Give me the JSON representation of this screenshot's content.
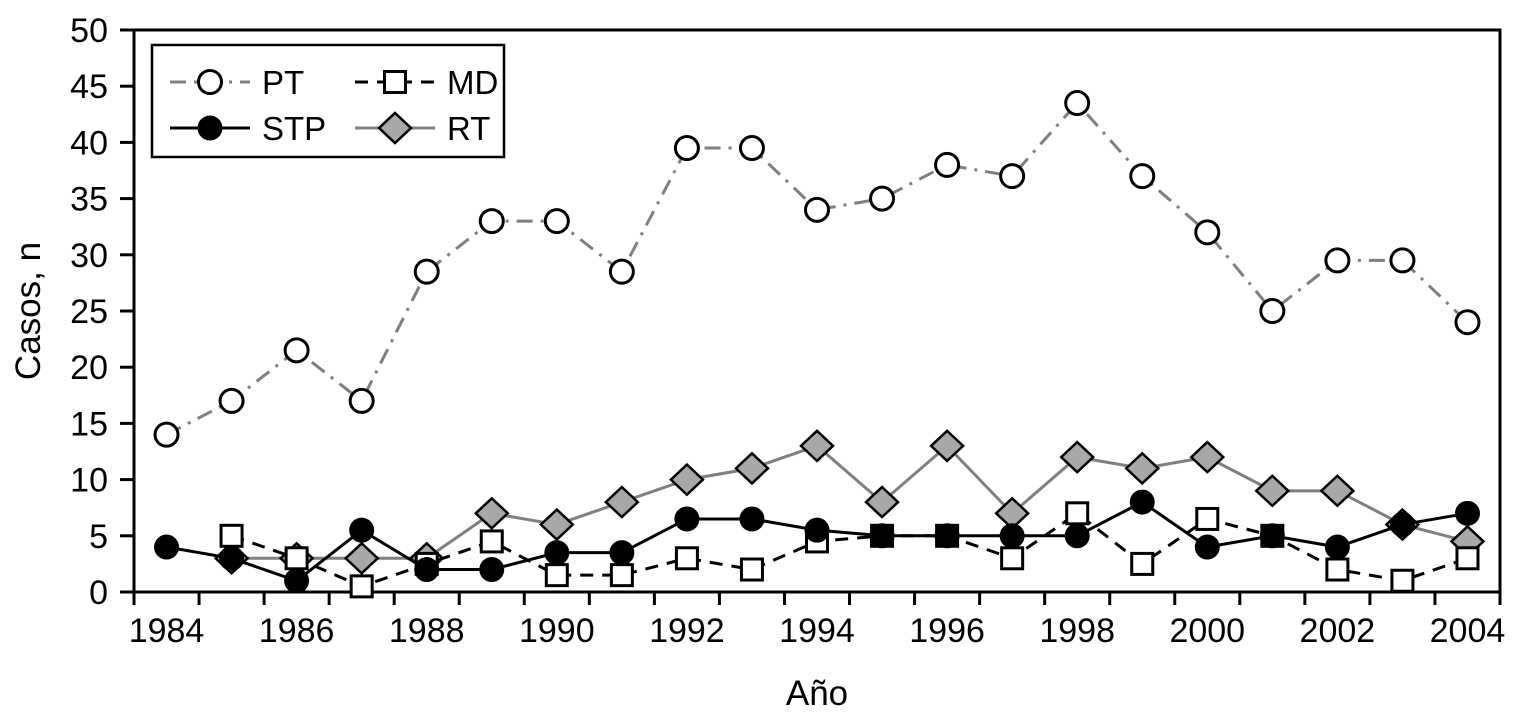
{
  "figure": {
    "background": "#ffffff"
  },
  "chart_data": {
    "type": "line",
    "title": "",
    "xlabel": "Año",
    "ylabel": "Casos, n",
    "x": [
      1984,
      1985,
      1986,
      1987,
      1988,
      1989,
      1990,
      1991,
      1992,
      1993,
      1994,
      1995,
      1996,
      1997,
      1998,
      1999,
      2000,
      2001,
      2002,
      2003,
      2004
    ],
    "x_tick_label_years": [
      1984,
      1986,
      1988,
      1990,
      1992,
      1994,
      1996,
      1998,
      2000,
      2002,
      2004
    ],
    "ylim": [
      0,
      50
    ],
    "ytick_step": 5,
    "grid": false,
    "legend_position": "top-left-inside",
    "axis_color": "#000000",
    "gray": "#7f7f7f",
    "legend_entries": [
      "PT",
      "MD",
      "STP",
      "RT"
    ],
    "series": [
      {
        "name": "PT",
        "line_style": "dash-dot",
        "line_color": "#7f7f7f",
        "marker": "open-circle",
        "marker_fill": "#ffffff",
        "marker_stroke": "#000000",
        "values": [
          14,
          17,
          21.5,
          17,
          28.5,
          33,
          33,
          28.5,
          39.5,
          39.5,
          34,
          35,
          38,
          37,
          43.5,
          37,
          32,
          25,
          29.5,
          29.5,
          24
        ]
      },
      {
        "name": "MD",
        "line_style": "dashed",
        "line_color": "#000000",
        "marker": "open-square",
        "marker_fill": "#ffffff",
        "marker_stroke": "#000000",
        "values": [
          null,
          5,
          3,
          0.5,
          2.5,
          4.5,
          1.5,
          1.5,
          3,
          2,
          4.5,
          5,
          5,
          3,
          7,
          2.5,
          6.5,
          5,
          2,
          1,
          3
        ]
      },
      {
        "name": "STP",
        "line_style": "solid",
        "line_color": "#000000",
        "marker": "filled-circle",
        "marker_fill": "#000000",
        "marker_stroke": "#000000",
        "values": [
          4,
          3,
          1,
          5.5,
          2,
          2,
          3.5,
          3.5,
          6.5,
          6.5,
          5.5,
          5,
          5,
          5,
          5,
          8,
          4,
          5,
          4,
          6,
          7
        ]
      },
      {
        "name": "RT",
        "line_style": "solid",
        "line_color": "#7f7f7f",
        "marker": "diamond",
        "marker_fill": "#a8a8a8",
        "marker_stroke": "#000000",
        "values": [
          null,
          3,
          3,
          3,
          3,
          7,
          6,
          8,
          10,
          11,
          13,
          8,
          13,
          7,
          12,
          11,
          12,
          9,
          9,
          6,
          4.5
        ]
      }
    ]
  }
}
